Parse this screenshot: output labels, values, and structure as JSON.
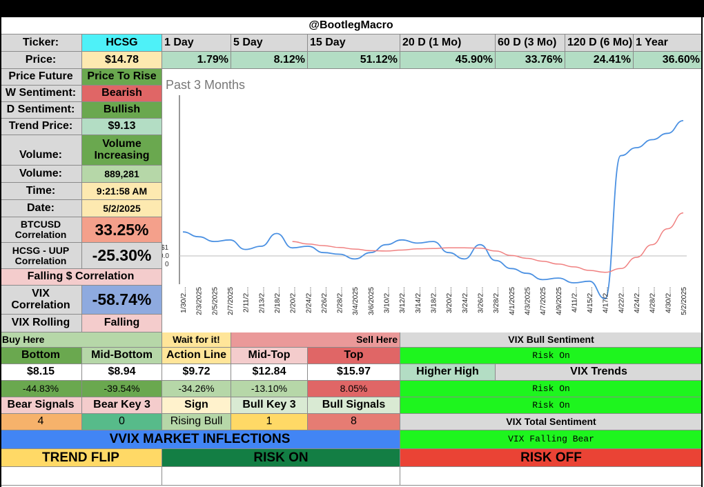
{
  "header": {
    "title": "@BootlegMacro"
  },
  "ticker": {
    "label": "Ticker:",
    "value": "HCSG"
  },
  "price": {
    "label": "Price:",
    "value": "$14.78"
  },
  "periods": [
    {
      "label": "1 Day",
      "value": "1.79%"
    },
    {
      "label": "5 Day",
      "value": "8.12%"
    },
    {
      "label": "15 Day",
      "value": "51.12%"
    },
    {
      "label": "20 D (1 Mo)",
      "value": "45.90%"
    },
    {
      "label": "60 D (3 Mo)",
      "value": "33.76%"
    },
    {
      "label": "120 D (6 Mo)",
      "value": "24.41%"
    },
    {
      "label": "1 Year",
      "value": "36.60%"
    }
  ],
  "left_panel": {
    "price_future": {
      "label": "Price Future",
      "value": "Price To Rise"
    },
    "w_sentiment": {
      "label": "W Sentiment:",
      "value": "Bearish"
    },
    "d_sentiment": {
      "label": "D Sentiment:",
      "value": "Bullish"
    },
    "trend_price": {
      "label": "Trend Price:",
      "value": "$9.13"
    },
    "volume_trend": {
      "label": "Volume:",
      "value": "Volume Increasing"
    },
    "volume": {
      "label": "Volume:",
      "value": "889,281"
    },
    "time": {
      "label": "Time:",
      "value": "9:21:58 AM"
    },
    "date": {
      "label": "Date:",
      "value": "5/2/2025"
    },
    "btc_corr": {
      "label": "BTCUSD Correlation",
      "value": "33.25%"
    },
    "uup_corr": {
      "label": "HCSG - UUP Correlation",
      "value": "-25.30%"
    },
    "falling_corr": "Falling $ Correlation",
    "vix_corr": {
      "label": "VIX Correlation",
      "value": "-58.74%"
    },
    "vix_rolling": {
      "label": "VIX Rolling",
      "value": "Falling"
    }
  },
  "zones": {
    "buy_here": "Buy Here",
    "wait": "Wait for it!",
    "sell_here": "Sell Here",
    "headers": [
      "Bottom",
      "Mid-Bottom",
      "Action Line",
      "Mid-Top",
      "Top"
    ],
    "prices": [
      "$8.15",
      "$8.94",
      "$9.72",
      "$12.84",
      "$15.97"
    ],
    "pcts": [
      "-44.83%",
      "-39.54%",
      "-34.26%",
      "-13.10%",
      "8.05%"
    ]
  },
  "signals": {
    "headers": [
      "Bear Signals",
      "Bear Key 3",
      "Sign",
      "Bull Key 3",
      "Bull Signals"
    ],
    "values": [
      "4",
      "0",
      "Rising Bull",
      "1",
      "8"
    ]
  },
  "vix_panel": {
    "bull_sentiment_label": "VIX Bull Sentiment",
    "bull_sentiment_value": "Risk On",
    "higher_high": "Higher High",
    "vix_trends_label": "VIX Trends",
    "trend_1": "Risk On",
    "trend_2": "Risk On",
    "total_label": "VIX Total Sentiment",
    "total_value": "VIX Falling Bear"
  },
  "bottom": {
    "vvix": "VVIX MARKET INFLECTIONS",
    "trend_flip": "TREND FLIP",
    "risk_on": "RISK ON",
    "risk_off": "RISK OFF"
  },
  "colors": {
    "cyan": "#4ef1f8",
    "light_yellow": "#fde9b0",
    "light_green": "#b3ddc4",
    "green": "#6aa84f",
    "red": "#e06666",
    "light_sage": "#b6d7a8",
    "salmon": "#f4a08b",
    "gray": "#d9d9d9",
    "pink": "#f4cccc",
    "blue": "#8eaadf",
    "lime": "#1ef51e",
    "bright_blue": "#4285f4",
    "yellow": "#ffd966",
    "dark_green": "#137e44",
    "bright_red": "#ea4335",
    "line_blue": "#4a90e2",
    "line_red": "#f08080"
  },
  "chart_data": {
    "type": "line",
    "title": "Past 3 Months",
    "x": [
      "1/30/2025",
      "2/3/2025",
      "2/5/2025",
      "2/7/2025",
      "2/11/2025",
      "2/13/2025",
      "2/18/2025",
      "2/20/2025",
      "2/24/2025",
      "2/26/2025",
      "2/28/2025",
      "3/4/2025",
      "3/6/2025",
      "3/10/2025",
      "3/12/2025",
      "3/14/2025",
      "3/18/2025",
      "3/20/2025",
      "3/24/2025",
      "3/26/2025",
      "3/28/2025",
      "4/1/2025",
      "4/3/2025",
      "4/7/2025",
      "4/9/2025",
      "4/11/2025",
      "4/15/2025",
      "4/17/2025",
      "4/22/2025",
      "4/24/2025",
      "4/28/2025",
      "4/30/2025",
      "5/2/2025"
    ],
    "x_tick_labels": [
      "1/30/2...",
      "2/3/2025",
      "2/5/2025",
      "2/7/2025",
      "2/11/2...",
      "2/13/2...",
      "2/18/2...",
      "2/20/2...",
      "2/24/2...",
      "2/26/2...",
      "2/28/2...",
      "3/4/2025",
      "3/6/2025",
      "3/10/2...",
      "3/12/2...",
      "3/14/2...",
      "3/18/2...",
      "3/20/2...",
      "3/24/2...",
      "3/26/2...",
      "3/28/2...",
      "4/1/2025",
      "4/3/2025",
      "4/7/2025",
      "4/9/2025",
      "4/11/2...",
      "4/15/2...",
      "4/17/2...",
      "4/22/2...",
      "4/24/2...",
      "4/28/2...",
      "4/30/2...",
      "5/2/2025"
    ],
    "y_tick_labels": [
      "$1",
      "0.0",
      "0"
    ],
    "ylim": [
      9.0,
      14.9
    ],
    "series": [
      {
        "name": "Price",
        "color": "#4a90e2",
        "values": [
          10.6,
          10.45,
          10.3,
          10.35,
          10.05,
          10.15,
          10.55,
          10.1,
          10.15,
          9.95,
          9.9,
          9.75,
          9.95,
          10.2,
          10.35,
          10.25,
          10.3,
          9.95,
          9.75,
          10.2,
          9.7,
          9.45,
          9.3,
          9.1,
          9.15,
          9.0,
          9.05,
          8.5,
          13.0,
          13.25,
          13.5,
          13.7,
          14.1
        ]
      },
      {
        "name": "Trend",
        "color": "#f08080",
        "values": [
          null,
          null,
          null,
          null,
          null,
          null,
          null,
          10.3,
          10.22,
          10.17,
          10.11,
          10.06,
          10.01,
          10.0,
          10.03,
          10.07,
          10.08,
          10.1,
          10.1,
          10.09,
          10.0,
          9.86,
          9.77,
          9.68,
          9.59,
          9.5,
          9.39,
          9.33,
          9.45,
          9.8,
          10.2,
          10.7,
          11.2
        ]
      }
    ]
  }
}
